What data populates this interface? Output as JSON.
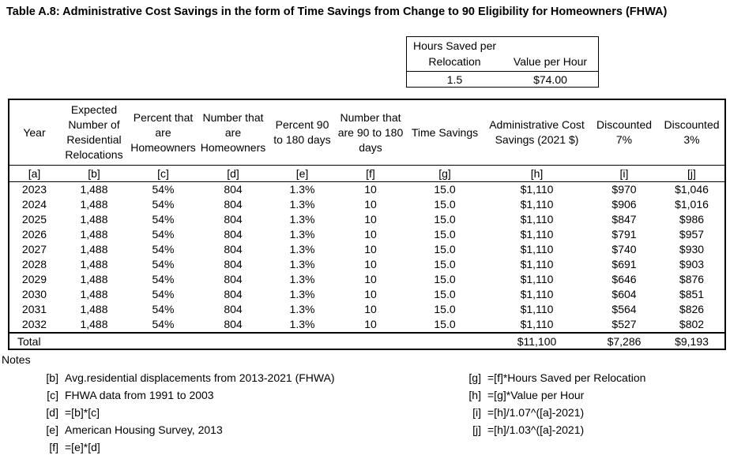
{
  "title": "Table A.8: Administrative Cost Savings in the form of Time Savings from Change to 90 Eligibility for Homeowners (FHWA)",
  "params_table": {
    "col1_header": "Hours Saved per Relocation",
    "col2_header": "Value per Hour",
    "col1_value": "1.5",
    "col2_value": "$74.00"
  },
  "main_table": {
    "columns": [
      {
        "label": "Year",
        "key": "[a]"
      },
      {
        "label": "Expected Number of Residential Relocations",
        "key": "[b]"
      },
      {
        "label": "Percent that are Homeowners",
        "key": "[c]"
      },
      {
        "label": "Number that are Homeowners",
        "key": "[d]"
      },
      {
        "label": "Percent 90 to 180 days",
        "key": "[e]"
      },
      {
        "label": "Number that are 90 to 180 days",
        "key": "[f]"
      },
      {
        "label": "Time Savings",
        "key": "[g]"
      },
      {
        "label": "Administrative Cost Savings (2021 $)",
        "key": "[h]"
      },
      {
        "label": "Discounted 7%",
        "key": "[i]"
      },
      {
        "label": "Discounted 3%",
        "key": "[j]"
      }
    ],
    "rows": [
      {
        "a": "2023",
        "b": "1,488",
        "c": "54%",
        "d": "804",
        "e": "1.3%",
        "f": "10",
        "g": "15.0",
        "h": "$1,110",
        "i": "$970",
        "j": "$1,046"
      },
      {
        "a": "2024",
        "b": "1,488",
        "c": "54%",
        "d": "804",
        "e": "1.3%",
        "f": "10",
        "g": "15.0",
        "h": "$1,110",
        "i": "$906",
        "j": "$1,016"
      },
      {
        "a": "2025",
        "b": "1,488",
        "c": "54%",
        "d": "804",
        "e": "1.3%",
        "f": "10",
        "g": "15.0",
        "h": "$1,110",
        "i": "$847",
        "j": "$986"
      },
      {
        "a": "2026",
        "b": "1,488",
        "c": "54%",
        "d": "804",
        "e": "1.3%",
        "f": "10",
        "g": "15.0",
        "h": "$1,110",
        "i": "$791",
        "j": "$957"
      },
      {
        "a": "2027",
        "b": "1,488",
        "c": "54%",
        "d": "804",
        "e": "1.3%",
        "f": "10",
        "g": "15.0",
        "h": "$1,110",
        "i": "$740",
        "j": "$930"
      },
      {
        "a": "2028",
        "b": "1,488",
        "c": "54%",
        "d": "804",
        "e": "1.3%",
        "f": "10",
        "g": "15.0",
        "h": "$1,110",
        "i": "$691",
        "j": "$903"
      },
      {
        "a": "2029",
        "b": "1,488",
        "c": "54%",
        "d": "804",
        "e": "1.3%",
        "f": "10",
        "g": "15.0",
        "h": "$1,110",
        "i": "$646",
        "j": "$876"
      },
      {
        "a": "2030",
        "b": "1,488",
        "c": "54%",
        "d": "804",
        "e": "1.3%",
        "f": "10",
        "g": "15.0",
        "h": "$1,110",
        "i": "$604",
        "j": "$851"
      },
      {
        "a": "2031",
        "b": "1,488",
        "c": "54%",
        "d": "804",
        "e": "1.3%",
        "f": "10",
        "g": "15.0",
        "h": "$1,110",
        "i": "$564",
        "j": "$826"
      },
      {
        "a": "2032",
        "b": "1,488",
        "c": "54%",
        "d": "804",
        "e": "1.3%",
        "f": "10",
        "g": "15.0",
        "h": "$1,110",
        "i": "$527",
        "j": "$802"
      }
    ],
    "total": {
      "label": "Total",
      "h": "$11,100",
      "i": "$7,286",
      "j": "$9,193"
    }
  },
  "notes": {
    "heading": "Notes",
    "left": [
      {
        "key": "[b]",
        "text": "Avg.residential displacements from 2013-2021 (FHWA)"
      },
      {
        "key": "[c]",
        "text": "FHWA data from 1991 to 2003"
      },
      {
        "key": "[d]",
        "text": "=[b]*[c]"
      },
      {
        "key": "[e]",
        "text": "American Housing Survey, 2013"
      },
      {
        "key": "[f]",
        "text": "=[e]*[d]"
      }
    ],
    "right": [
      {
        "key": "[g]",
        "text": "=[f]*Hours Saved per Relocation"
      },
      {
        "key": "[h]",
        "text": "=[g]*Value per Hour"
      },
      {
        "key": "[i]",
        "text": "=[h]/1.07^([a]-2021)"
      },
      {
        "key": "[j]",
        "text": "=[h]/1.03^([a]-2021)"
      }
    ]
  }
}
